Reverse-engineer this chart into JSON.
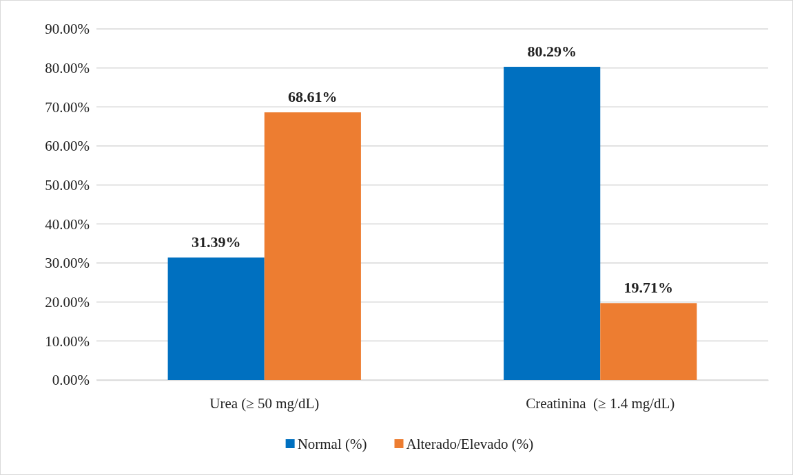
{
  "chart_data": {
    "type": "bar",
    "categories": [
      "Urea (≥ 50 mg/dL)",
      "Creatinina  (≥ 1.4 mg/dL)"
    ],
    "series": [
      {
        "name": "Normal (%)",
        "color": "#0070c0",
        "values": [
          31.39,
          80.29
        ],
        "value_labels": [
          "31.39%",
          "80.29%"
        ]
      },
      {
        "name": "Alterado/Elevado (%)",
        "color": "#ed7d31",
        "values": [
          68.61,
          19.71
        ],
        "value_labels": [
          "68.61%",
          "19.71%"
        ]
      }
    ],
    "ylim": [
      0,
      90
    ],
    "yticks": [
      {
        "value": 0,
        "label": "0.00%"
      },
      {
        "value": 10,
        "label": "10.00%"
      },
      {
        "value": 20,
        "label": "20.00%"
      },
      {
        "value": 30,
        "label": "30.00%"
      },
      {
        "value": 40,
        "label": "40.00%"
      },
      {
        "value": 50,
        "label": "50.00%"
      },
      {
        "value": 60,
        "label": "60.00%"
      },
      {
        "value": 70,
        "label": "70.00%"
      },
      {
        "value": 80,
        "label": "80.00%"
      },
      {
        "value": 90,
        "label": "90.00%"
      }
    ],
    "grid": "y",
    "legend": "bottom"
  }
}
